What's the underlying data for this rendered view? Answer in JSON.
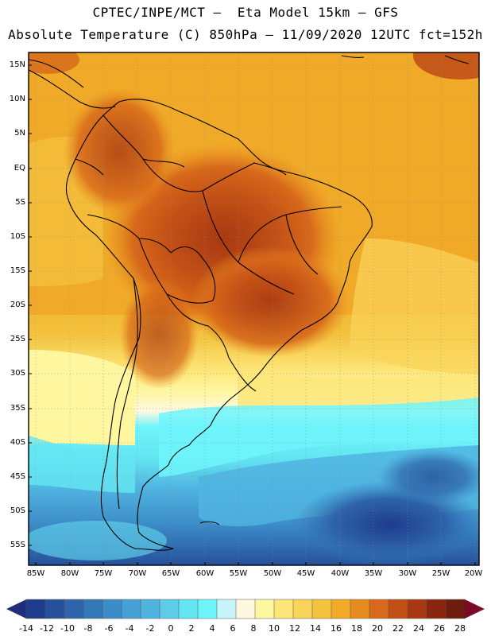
{
  "header": {
    "line1": "CPTEC/INPE/MCT –  Eta Model 15km – GFS",
    "line2": "Absolute Temperature (C) 850hPa – 11/09/2020 12UTC fct=152h"
  },
  "map": {
    "variable": "Absolute Temperature",
    "units": "C",
    "level": "850hPa",
    "model": "Eta Model 15km",
    "forcing": "GFS",
    "run": "11/09/2020 12UTC",
    "forecast_hour": "fct=152h",
    "lat_range": [
      -58,
      17
    ],
    "lon_range": [
      -86,
      -20
    ],
    "lat_labels": [
      "15N",
      "10N",
      "5N",
      "EQ",
      "5S",
      "10S",
      "15S",
      "20S",
      "25S",
      "30S",
      "35S",
      "40S",
      "45S",
      "50S",
      "55S"
    ],
    "lon_labels": [
      "85W",
      "80W",
      "75W",
      "70W",
      "65W",
      "60W",
      "55W",
      "50W",
      "45W",
      "40W",
      "35W",
      "30W",
      "25W",
      "20W"
    ]
  },
  "colorbar": {
    "labels": [
      "-14",
      "-12",
      "-10",
      "-8",
      "-6",
      "-4",
      "-2",
      "0",
      "2",
      "4",
      "6",
      "8",
      "10",
      "12",
      "14",
      "16",
      "18",
      "20",
      "22",
      "24",
      "26",
      "28"
    ],
    "colors": [
      "#1e3c8c",
      "#26509a",
      "#2e64aa",
      "#3478b8",
      "#3c8cc8",
      "#46a0d4",
      "#50b4e0",
      "#5ccce8",
      "#64e6f2",
      "#6ef5fa",
      "#c8f5fa",
      "#fff8e0",
      "#fff6a0",
      "#fde678",
      "#f9d45a",
      "#f3c23e",
      "#f0aa28",
      "#e68c1e",
      "#d8681a",
      "#c25016",
      "#a83812",
      "#8a2610",
      "#6e1c0c"
    ],
    "low_arrow_color": "#1e2e7a",
    "high_arrow_color": "#7a0a28"
  }
}
